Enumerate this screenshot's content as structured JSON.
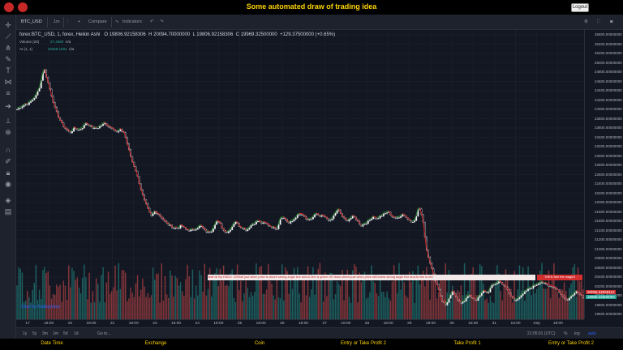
{
  "topbar": {
    "title": "Some automated draw of trading idea",
    "logout_label": "Logout"
  },
  "toolbar": {
    "symbol": "BTC_USD",
    "interval": "1m",
    "compare_label": "Compare",
    "indicators_label": "Indicators"
  },
  "legend": {
    "series_title": "forex:BTC_USD, 1, forex, Heikin Ashi",
    "open": "O 19806.92158306",
    "high": "H 20094.70000000",
    "low": "L 19806.92158306",
    "close": "C 19969.32500000",
    "change": "+129.37500000 (+0.65%)",
    "volume_label": "Volume (20)",
    "volume_value": "27.4660",
    "volume_na": "n/a",
    "ai_label": "AI (1, 1)",
    "ai_value": "19358.1591",
    "ai_na": "n/a"
  },
  "price_axis": {
    "ticks": [
      "25600.00000000",
      "25400.00000000",
      "25200.00000000",
      "25000.00000000",
      "24800.00000000",
      "24600.00000000",
      "24400.00000000",
      "24200.00000000",
      "24000.00000000",
      "23800.00000000",
      "23600.00000000",
      "23400.00000000",
      "23200.00000000",
      "23000.00000000",
      "22800.00000000",
      "22600.00000000",
      "22400.00000000",
      "22200.00000000",
      "22000.00000000",
      "21800.00000000",
      "21600.00000000",
      "21400.00000000",
      "21200.00000000",
      "21000.00000000",
      "20800.00000000",
      "20600.00000000",
      "20400.00000000",
      "20200.00000000",
      "20000.00000000",
      "19800.00000000",
      "19600.00000000"
    ],
    "last_price": "19969.32500000",
    "marker_price": "20065.34059112"
  },
  "time_axis": {
    "labels": [
      "17",
      "18:00",
      "19",
      "18:00",
      "21",
      "18:00",
      "23",
      "18:00",
      "24",
      "18:00",
      "25",
      "18:00",
      "26",
      "18:00",
      "27",
      "18:00",
      "28",
      "18:00",
      "29",
      "18:00",
      "30",
      "18:00",
      "31",
      "18:00",
      "Sep",
      "18:00"
    ]
  },
  "banners": {
    "signal_text": "Wait till flip ENDS !   DRAW just when   price is above strong angle line and AI line is green        OR       draw shorts just when price still below strong angle line and AI line is red",
    "magic_text": "THEN See the magic!!"
  },
  "watermark": "Chart by TradingView",
  "bottombar": {
    "ranges": [
      "1y",
      "5y",
      "3m",
      "1m",
      "5d",
      "1d",
      "Go to..."
    ],
    "clock": "21:05:01 (UTC)",
    "pct": "%",
    "log": "log",
    "auto": "auto"
  },
  "footer": {
    "columns": [
      "Date Time",
      "Exchange",
      "Coin",
      "Entry or Take Profit 2",
      "Take Profit 1",
      "Entry or Take Profit 2"
    ]
  },
  "colors": {
    "up": "#26a69a",
    "down": "#ef5350",
    "accent_yellow": "#ffd400",
    "banner_red": "#d32f2f"
  },
  "chart_data": {
    "type": "candlestick",
    "title": "",
    "ylim": [
      19600,
      25600
    ],
    "close_path": [
      24000,
      24050,
      24100,
      24120,
      24200,
      24300,
      24500,
      24900,
      24600,
      24300,
      24000,
      23800,
      23650,
      23550,
      23500,
      23600,
      23550,
      23600,
      23700,
      23650,
      23580,
      23600,
      23650,
      23700,
      23620,
      23600,
      23500,
      23550,
      23500,
      23200,
      22900,
      22700,
      22400,
      22100,
      21900,
      21700,
      21800,
      21750,
      21650,
      21550,
      21500,
      21450,
      21450,
      21500,
      21420,
      21400,
      21400,
      21450,
      21500,
      21400,
      21350,
      21400,
      21600,
      21550,
      21400,
      21350,
      21450,
      21600,
      21500,
      21450,
      21400,
      21500,
      21550,
      21600,
      21550,
      21550,
      21500,
      21450,
      21450,
      21700,
      21650,
      21550,
      21600,
      21700,
      21750,
      21700,
      21600,
      21650,
      21750,
      21700,
      21700,
      21650,
      21600,
      21750,
      21850,
      21700,
      21600,
      21650,
      21700,
      21600,
      21500,
      21550,
      21600,
      21700,
      21650,
      21700,
      21750,
      21800,
      21700,
      21650,
      21700,
      21750,
      21650,
      21600,
      21600,
      21900,
      21700,
      21000,
      20700,
      20400,
      20200,
      19900,
      19800,
      19950,
      20100,
      19900,
      19850,
      19900,
      20000,
      19950,
      19900,
      20000,
      20100,
      20050,
      20200,
      20250,
      20300,
      20250,
      20150,
      20000,
      19900,
      19950,
      20000,
      20100,
      20150,
      20200,
      20250,
      20300,
      20250,
      20200,
      20200,
      20150,
      20050,
      19950,
      19900,
      20000,
      20100,
      20050,
      19969
    ]
  }
}
